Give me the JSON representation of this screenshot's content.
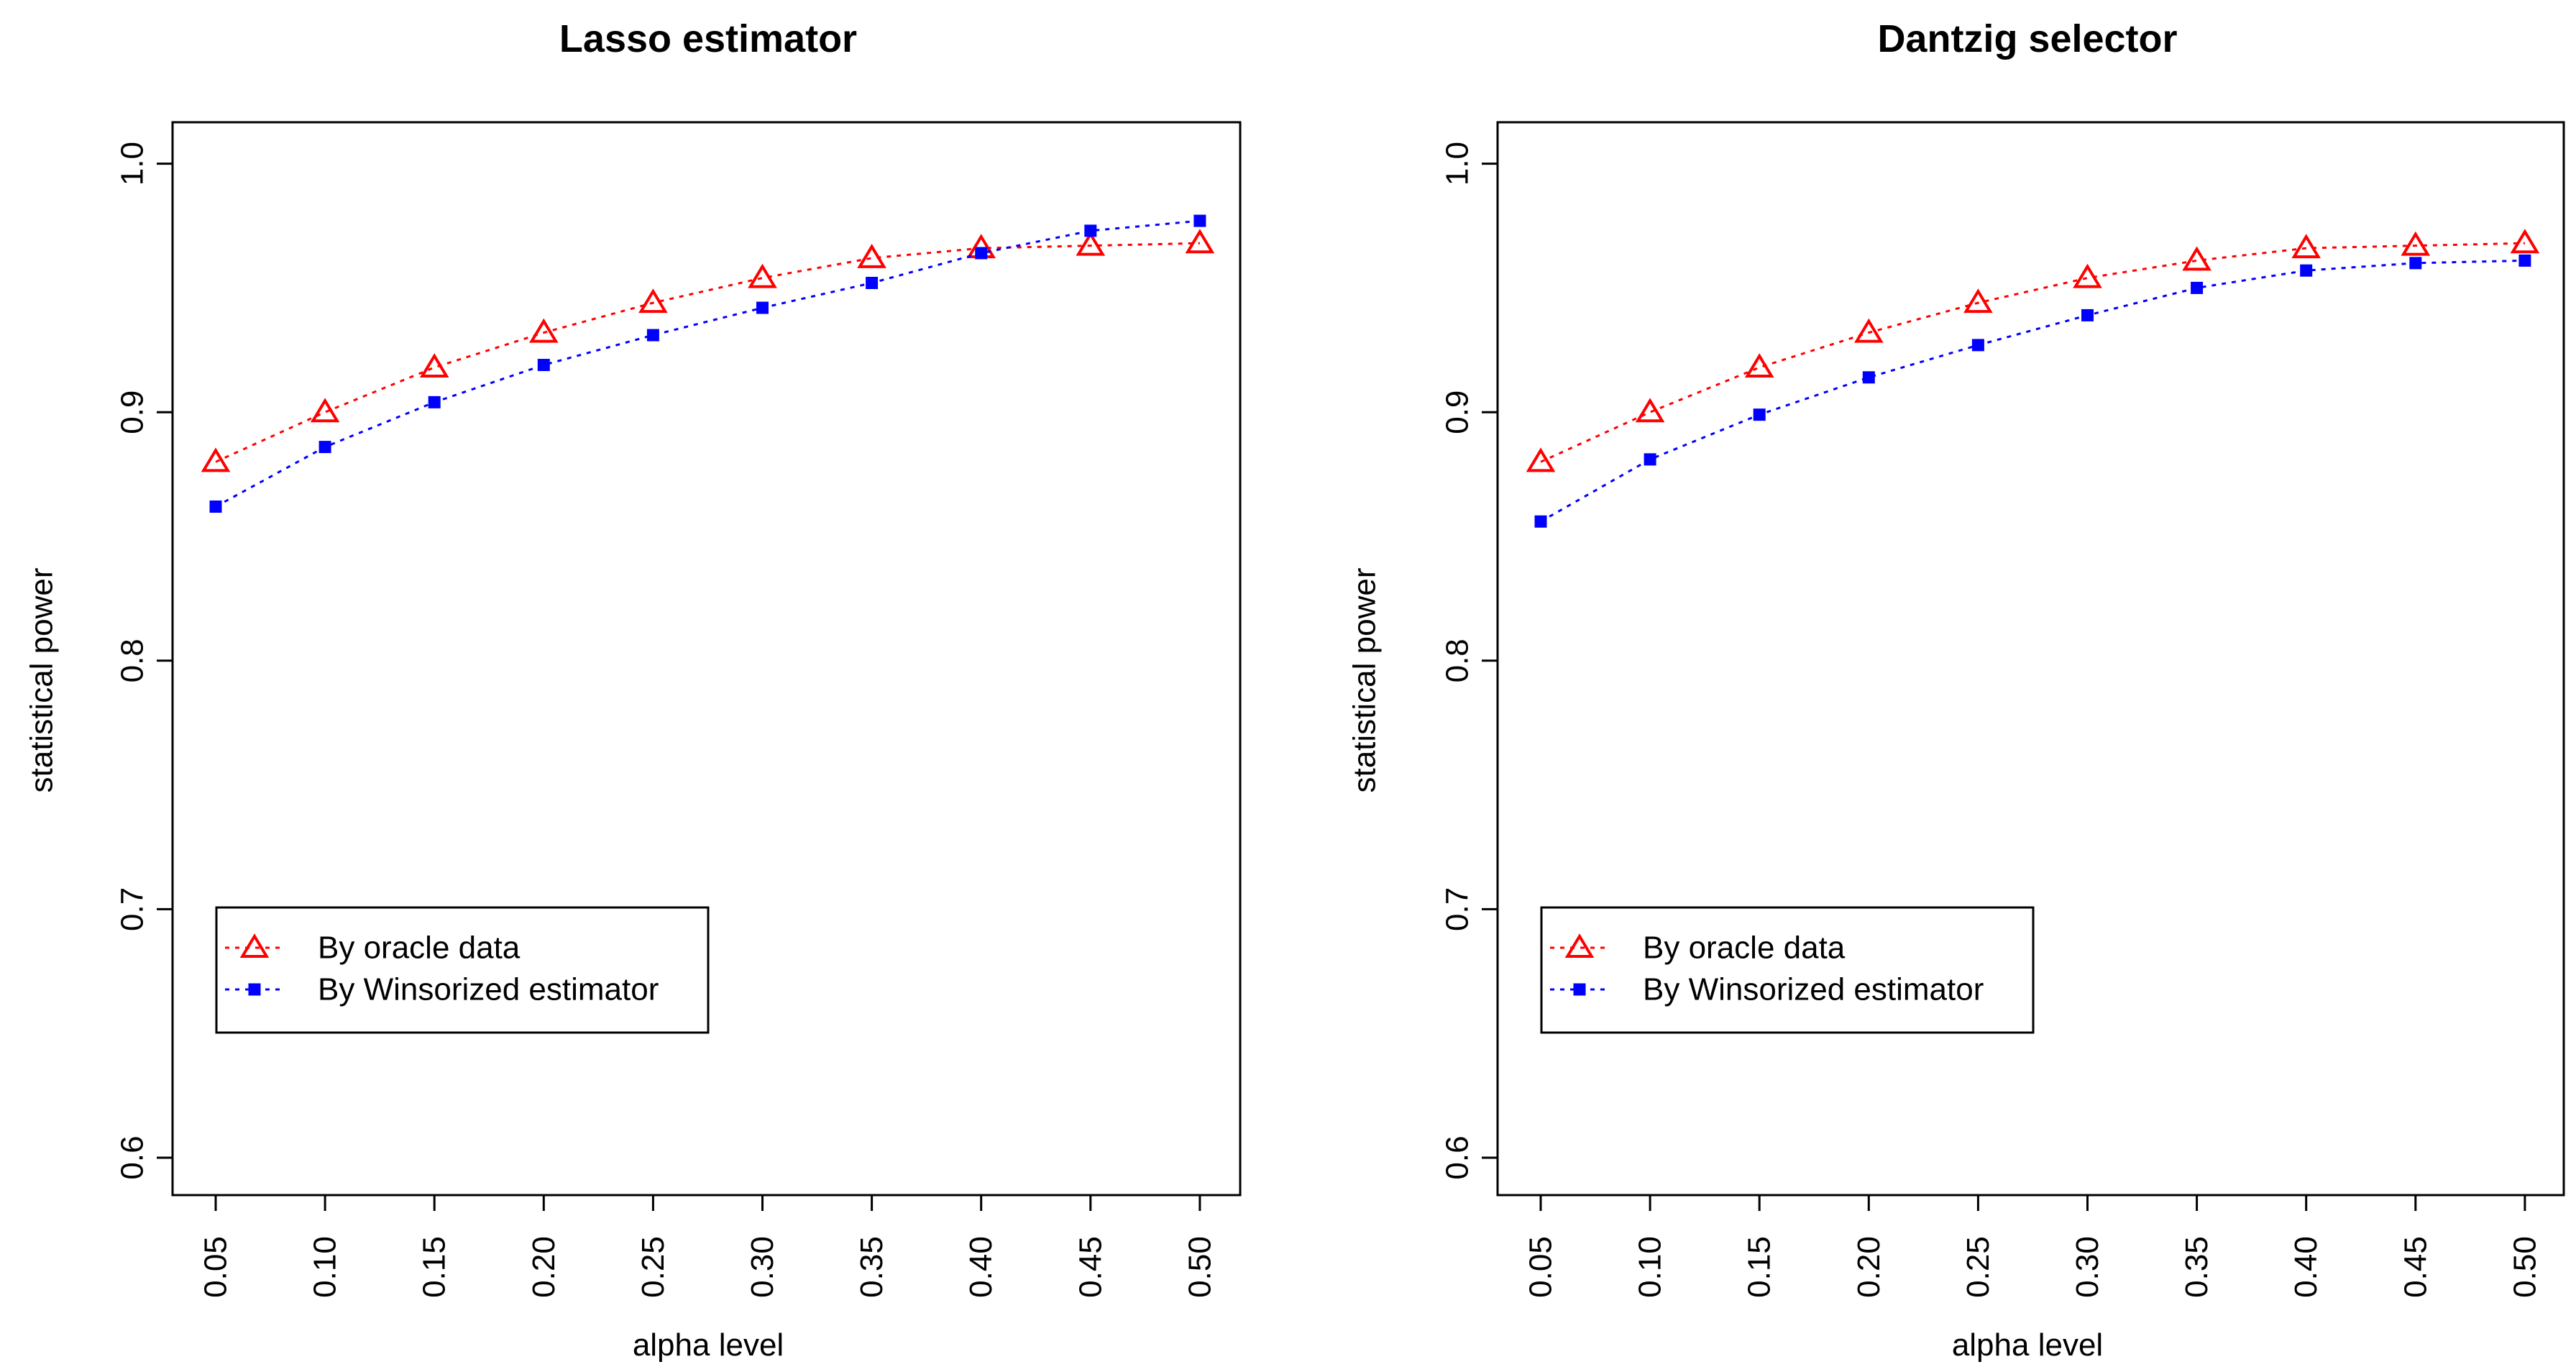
{
  "chart_data": [
    {
      "type": "line",
      "title": "Lasso estimator",
      "xlabel": "alpha level",
      "ylabel": "statistical power",
      "x": [
        0.05,
        0.1,
        0.15,
        0.2,
        0.25,
        0.3,
        0.35,
        0.4,
        0.45,
        0.5
      ],
      "x_tick_labels": [
        "0.05",
        "0.10",
        "0.15",
        "0.20",
        "0.25",
        "0.30",
        "0.35",
        "0.40",
        "0.45",
        "0.50"
      ],
      "y_ticks": [
        0.6,
        0.7,
        0.8,
        0.9,
        1.0
      ],
      "y_tick_labels": [
        "0.6",
        "0.7",
        "0.8",
        "0.9",
        "1.0"
      ],
      "ylim": [
        0.6,
        1.0
      ],
      "grid": false,
      "legend_position": "bottom-left",
      "series": [
        {
          "name": "By oracle data",
          "color": "#ff0000",
          "marker": "triangle-open",
          "line": "dotted",
          "values": [
            0.88,
            0.9,
            0.918,
            0.932,
            0.944,
            0.954,
            0.962,
            0.966,
            0.967,
            0.968
          ]
        },
        {
          "name": "By Winsorized estimator",
          "color": "#0000ff",
          "marker": "square-filled",
          "line": "dotted",
          "values": [
            0.862,
            0.886,
            0.904,
            0.919,
            0.931,
            0.942,
            0.952,
            0.964,
            0.973,
            0.977
          ]
        }
      ]
    },
    {
      "type": "line",
      "title": "Dantzig selector",
      "xlabel": "alpha level",
      "ylabel": "statistical power",
      "x": [
        0.05,
        0.1,
        0.15,
        0.2,
        0.25,
        0.3,
        0.35,
        0.4,
        0.45,
        0.5
      ],
      "x_tick_labels": [
        "0.05",
        "0.10",
        "0.15",
        "0.20",
        "0.25",
        "0.30",
        "0.35",
        "0.40",
        "0.45",
        "0.50"
      ],
      "y_ticks": [
        0.6,
        0.7,
        0.8,
        0.9,
        1.0
      ],
      "y_tick_labels": [
        "0.6",
        "0.7",
        "0.8",
        "0.9",
        "1.0"
      ],
      "ylim": [
        0.6,
        1.0
      ],
      "grid": false,
      "legend_position": "bottom-left",
      "series": [
        {
          "name": "By oracle data",
          "color": "#ff0000",
          "marker": "triangle-open",
          "line": "dotted",
          "values": [
            0.88,
            0.9,
            0.918,
            0.932,
            0.944,
            0.954,
            0.961,
            0.966,
            0.967,
            0.968
          ]
        },
        {
          "name": "By Winsorized estimator",
          "color": "#0000ff",
          "marker": "square-filled",
          "line": "dotted",
          "values": [
            0.856,
            0.881,
            0.899,
            0.914,
            0.927,
            0.939,
            0.95,
            0.957,
            0.96,
            0.961
          ]
        }
      ]
    }
  ]
}
